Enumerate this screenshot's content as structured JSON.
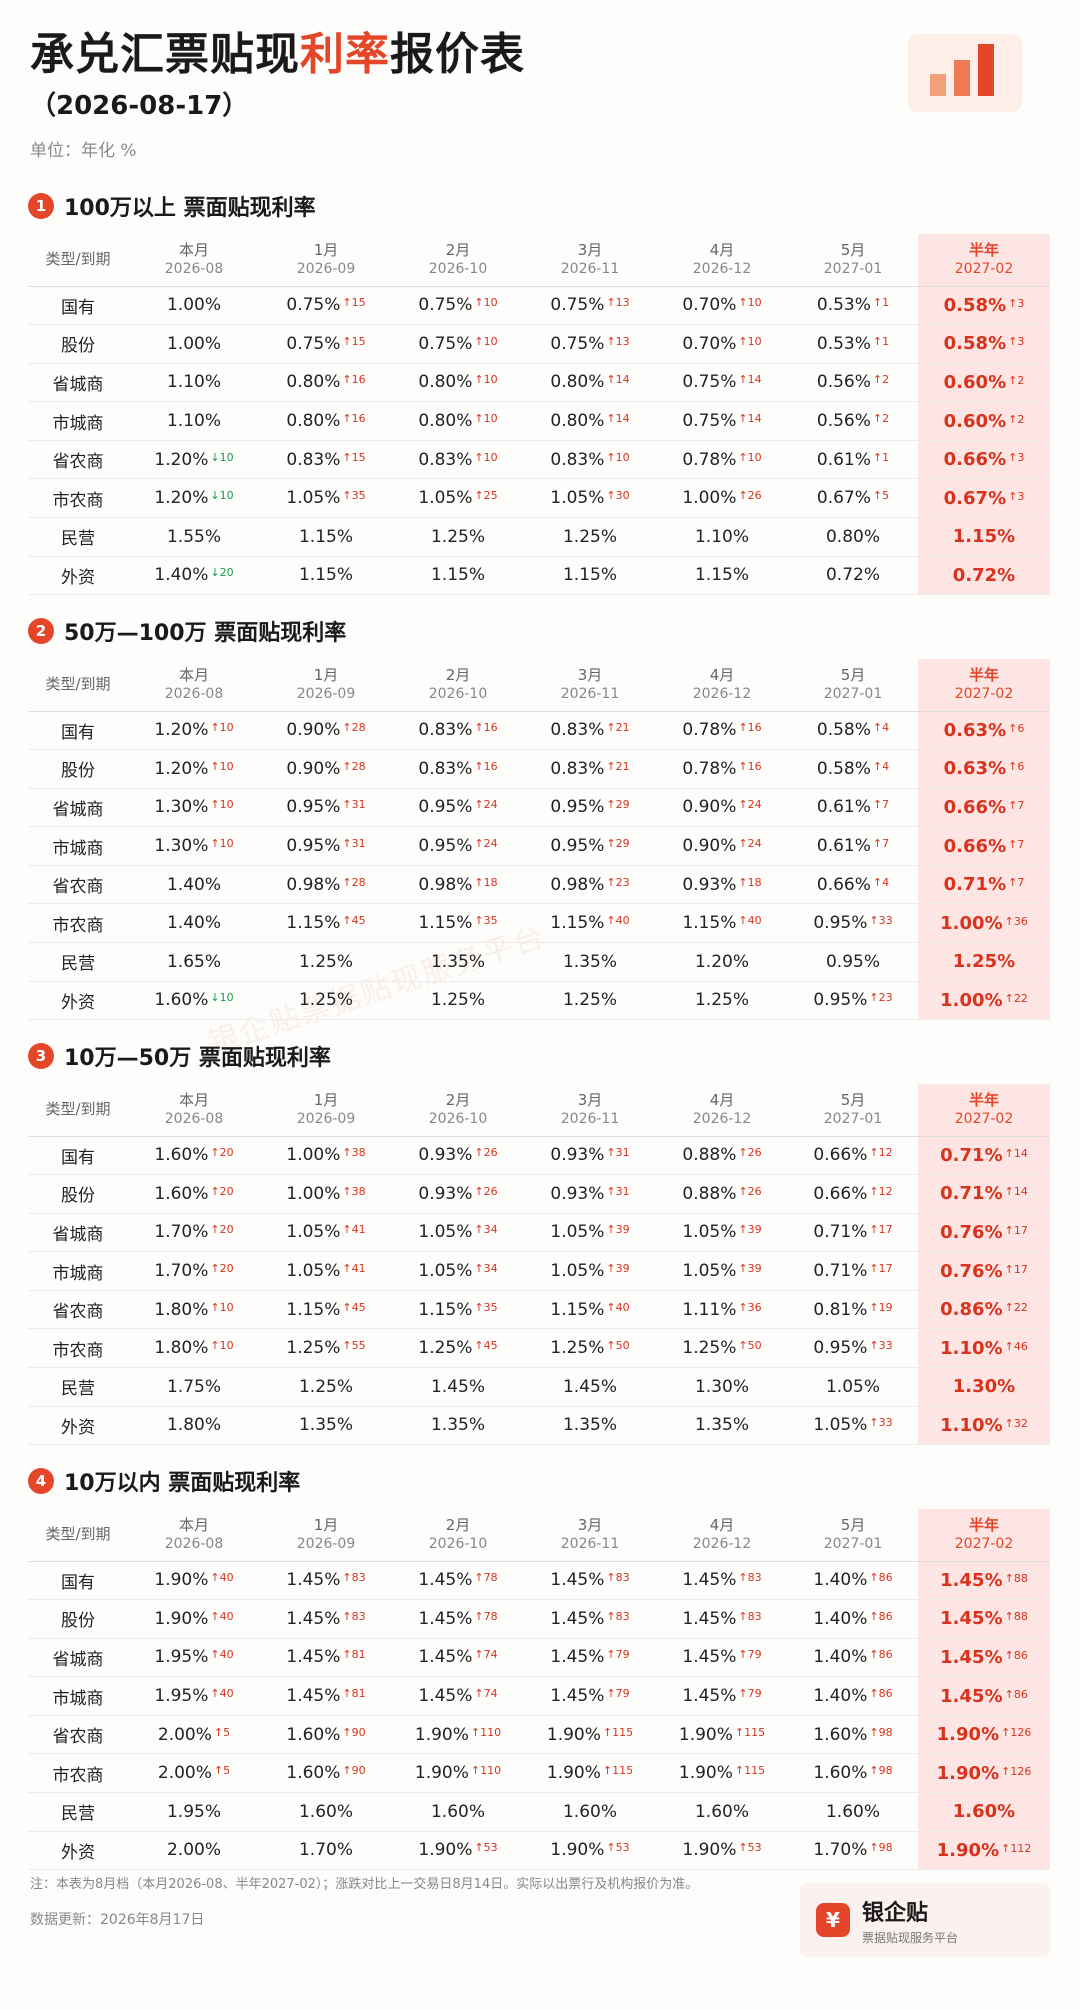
{
  "header": {
    "title_pre": "承兑汇票贴现",
    "title_hl": "利率",
    "title_post": "报价表",
    "date": "（2026-08-17）",
    "unit": "单位：年化 %"
  },
  "columns": [
    {
      "label": "本月",
      "sub": "2026-08"
    },
    {
      "label": "1月",
      "sub": "2026-09"
    },
    {
      "label": "2月",
      "sub": "2026-10"
    },
    {
      "label": "3月",
      "sub": "2026-11"
    },
    {
      "label": "4月",
      "sub": "2026-12"
    },
    {
      "label": "5月",
      "sub": "2027-01"
    },
    {
      "label": "半年",
      "sub": "2027-02"
    }
  ],
  "type_header": "类型/到期",
  "sections": [
    {
      "num": "1",
      "title": "100万以上 票面贴现利率",
      "rows": [
        {
          "type": "国有",
          "cells": [
            [
              "1.00%",
              ""
            ],
            [
              "0.75%",
              "↑15"
            ],
            [
              "0.75%",
              "↑10"
            ],
            [
              "0.75%",
              "↑13"
            ],
            [
              "0.70%",
              "↑10"
            ],
            [
              "0.53%",
              "↑1"
            ],
            [
              "0.58%",
              "↑3"
            ]
          ]
        },
        {
          "type": "股份",
          "cells": [
            [
              "1.00%",
              ""
            ],
            [
              "0.75%",
              "↑15"
            ],
            [
              "0.75%",
              "↑10"
            ],
            [
              "0.75%",
              "↑13"
            ],
            [
              "0.70%",
              "↑10"
            ],
            [
              "0.53%",
              "↑1"
            ],
            [
              "0.58%",
              "↑3"
            ]
          ]
        },
        {
          "type": "省城商",
          "cells": [
            [
              "1.10%",
              ""
            ],
            [
              "0.80%",
              "↑16"
            ],
            [
              "0.80%",
              "↑10"
            ],
            [
              "0.80%",
              "↑14"
            ],
            [
              "0.75%",
              "↑14"
            ],
            [
              "0.56%",
              "↑2"
            ],
            [
              "0.60%",
              "↑2"
            ]
          ]
        },
        {
          "type": "市城商",
          "cells": [
            [
              "1.10%",
              ""
            ],
            [
              "0.80%",
              "↑16"
            ],
            [
              "0.80%",
              "↑10"
            ],
            [
              "0.80%",
              "↑14"
            ],
            [
              "0.75%",
              "↑14"
            ],
            [
              "0.56%",
              "↑2"
            ],
            [
              "0.60%",
              "↑2"
            ]
          ]
        },
        {
          "type": "省农商",
          "cells": [
            [
              "1.20%",
              "↓10"
            ],
            [
              "0.83%",
              "↑15"
            ],
            [
              "0.83%",
              "↑10"
            ],
            [
              "0.83%",
              "↑10"
            ],
            [
              "0.78%",
              "↑10"
            ],
            [
              "0.61%",
              "↑1"
            ],
            [
              "0.66%",
              "↑3"
            ]
          ]
        },
        {
          "type": "市农商",
          "cells": [
            [
              "1.20%",
              "↓10"
            ],
            [
              "1.05%",
              "↑35"
            ],
            [
              "1.05%",
              "↑25"
            ],
            [
              "1.05%",
              "↑30"
            ],
            [
              "1.00%",
              "↑26"
            ],
            [
              "0.67%",
              "↑5"
            ],
            [
              "0.67%",
              "↑3"
            ]
          ]
        },
        {
          "type": "民营",
          "cells": [
            [
              "1.55%",
              ""
            ],
            [
              "1.15%",
              ""
            ],
            [
              "1.25%",
              ""
            ],
            [
              "1.25%",
              ""
            ],
            [
              "1.10%",
              ""
            ],
            [
              "0.80%",
              ""
            ],
            [
              "1.15%",
              ""
            ]
          ]
        },
        {
          "type": "外资",
          "cells": [
            [
              "1.40%",
              "↓20"
            ],
            [
              "1.15%",
              ""
            ],
            [
              "1.15%",
              ""
            ],
            [
              "1.15%",
              ""
            ],
            [
              "1.15%",
              ""
            ],
            [
              "0.72%",
              ""
            ],
            [
              "0.72%",
              ""
            ]
          ]
        }
      ]
    },
    {
      "num": "2",
      "title": "50万—100万 票面贴现利率",
      "rows": [
        {
          "type": "国有",
          "cells": [
            [
              "1.20%",
              "↑10"
            ],
            [
              "0.90%",
              "↑28"
            ],
            [
              "0.83%",
              "↑16"
            ],
            [
              "0.83%",
              "↑21"
            ],
            [
              "0.78%",
              "↑16"
            ],
            [
              "0.58%",
              "↑4"
            ],
            [
              "0.63%",
              "↑6"
            ]
          ]
        },
        {
          "type": "股份",
          "cells": [
            [
              "1.20%",
              "↑10"
            ],
            [
              "0.90%",
              "↑28"
            ],
            [
              "0.83%",
              "↑16"
            ],
            [
              "0.83%",
              "↑21"
            ],
            [
              "0.78%",
              "↑16"
            ],
            [
              "0.58%",
              "↑4"
            ],
            [
              "0.63%",
              "↑6"
            ]
          ]
        },
        {
          "type": "省城商",
          "cells": [
            [
              "1.30%",
              "↑10"
            ],
            [
              "0.95%",
              "↑31"
            ],
            [
              "0.95%",
              "↑24"
            ],
            [
              "0.95%",
              "↑29"
            ],
            [
              "0.90%",
              "↑24"
            ],
            [
              "0.61%",
              "↑7"
            ],
            [
              "0.66%",
              "↑7"
            ]
          ]
        },
        {
          "type": "市城商",
          "cells": [
            [
              "1.30%",
              "↑10"
            ],
            [
              "0.95%",
              "↑31"
            ],
            [
              "0.95%",
              "↑24"
            ],
            [
              "0.95%",
              "↑29"
            ],
            [
              "0.90%",
              "↑24"
            ],
            [
              "0.61%",
              "↑7"
            ],
            [
              "0.66%",
              "↑7"
            ]
          ]
        },
        {
          "type": "省农商",
          "cells": [
            [
              "1.40%",
              ""
            ],
            [
              "0.98%",
              "↑28"
            ],
            [
              "0.98%",
              "↑18"
            ],
            [
              "0.98%",
              "↑23"
            ],
            [
              "0.93%",
              "↑18"
            ],
            [
              "0.66%",
              "↑4"
            ],
            [
              "0.71%",
              "↑7"
            ]
          ]
        },
        {
          "type": "市农商",
          "cells": [
            [
              "1.40%",
              ""
            ],
            [
              "1.15%",
              "↑45"
            ],
            [
              "1.15%",
              "↑35"
            ],
            [
              "1.15%",
              "↑40"
            ],
            [
              "1.15%",
              "↑40"
            ],
            [
              "0.95%",
              "↑33"
            ],
            [
              "1.00%",
              "↑36"
            ]
          ]
        },
        {
          "type": "民营",
          "cells": [
            [
              "1.65%",
              ""
            ],
            [
              "1.25%",
              ""
            ],
            [
              "1.35%",
              ""
            ],
            [
              "1.35%",
              ""
            ],
            [
              "1.20%",
              ""
            ],
            [
              "0.95%",
              ""
            ],
            [
              "1.25%",
              ""
            ]
          ]
        },
        {
          "type": "外资",
          "cells": [
            [
              "1.60%",
              "↓10"
            ],
            [
              "1.25%",
              ""
            ],
            [
              "1.25%",
              ""
            ],
            [
              "1.25%",
              ""
            ],
            [
              "1.25%",
              ""
            ],
            [
              "0.95%",
              "↑23"
            ],
            [
              "1.00%",
              "↑22"
            ]
          ]
        }
      ]
    },
    {
      "num": "3",
      "title": "10万—50万 票面贴现利率",
      "rows": [
        {
          "type": "国有",
          "cells": [
            [
              "1.60%",
              "↑20"
            ],
            [
              "1.00%",
              "↑38"
            ],
            [
              "0.93%",
              "↑26"
            ],
            [
              "0.93%",
              "↑31"
            ],
            [
              "0.88%",
              "↑26"
            ],
            [
              "0.66%",
              "↑12"
            ],
            [
              "0.71%",
              "↑14"
            ]
          ]
        },
        {
          "type": "股份",
          "cells": [
            [
              "1.60%",
              "↑20"
            ],
            [
              "1.00%",
              "↑38"
            ],
            [
              "0.93%",
              "↑26"
            ],
            [
              "0.93%",
              "↑31"
            ],
            [
              "0.88%",
              "↑26"
            ],
            [
              "0.66%",
              "↑12"
            ],
            [
              "0.71%",
              "↑14"
            ]
          ]
        },
        {
          "type": "省城商",
          "cells": [
            [
              "1.70%",
              "↑20"
            ],
            [
              "1.05%",
              "↑41"
            ],
            [
              "1.05%",
              "↑34"
            ],
            [
              "1.05%",
              "↑39"
            ],
            [
              "1.05%",
              "↑39"
            ],
            [
              "0.71%",
              "↑17"
            ],
            [
              "0.76%",
              "↑17"
            ]
          ]
        },
        {
          "type": "市城商",
          "cells": [
            [
              "1.70%",
              "↑20"
            ],
            [
              "1.05%",
              "↑41"
            ],
            [
              "1.05%",
              "↑34"
            ],
            [
              "1.05%",
              "↑39"
            ],
            [
              "1.05%",
              "↑39"
            ],
            [
              "0.71%",
              "↑17"
            ],
            [
              "0.76%",
              "↑17"
            ]
          ]
        },
        {
          "type": "省农商",
          "cells": [
            [
              "1.80%",
              "↑10"
            ],
            [
              "1.15%",
              "↑45"
            ],
            [
              "1.15%",
              "↑35"
            ],
            [
              "1.15%",
              "↑40"
            ],
            [
              "1.11%",
              "↑36"
            ],
            [
              "0.81%",
              "↑19"
            ],
            [
              "0.86%",
              "↑22"
            ]
          ]
        },
        {
          "type": "市农商",
          "cells": [
            [
              "1.80%",
              "↑10"
            ],
            [
              "1.25%",
              "↑55"
            ],
            [
              "1.25%",
              "↑45"
            ],
            [
              "1.25%",
              "↑50"
            ],
            [
              "1.25%",
              "↑50"
            ],
            [
              "0.95%",
              "↑33"
            ],
            [
              "1.10%",
              "↑46"
            ]
          ]
        },
        {
          "type": "民营",
          "cells": [
            [
              "1.75%",
              ""
            ],
            [
              "1.25%",
              ""
            ],
            [
              "1.45%",
              ""
            ],
            [
              "1.45%",
              ""
            ],
            [
              "1.30%",
              ""
            ],
            [
              "1.05%",
              ""
            ],
            [
              "1.30%",
              ""
            ]
          ]
        },
        {
          "type": "外资",
          "cells": [
            [
              "1.80%",
              ""
            ],
            [
              "1.35%",
              ""
            ],
            [
              "1.35%",
              ""
            ],
            [
              "1.35%",
              ""
            ],
            [
              "1.35%",
              ""
            ],
            [
              "1.05%",
              "↑33"
            ],
            [
              "1.10%",
              "↑32"
            ]
          ]
        }
      ]
    },
    {
      "num": "4",
      "title": "10万以内 票面贴现利率",
      "rows": [
        {
          "type": "国有",
          "cells": [
            [
              "1.90%",
              "↑40"
            ],
            [
              "1.45%",
              "↑83"
            ],
            [
              "1.45%",
              "↑78"
            ],
            [
              "1.45%",
              "↑83"
            ],
            [
              "1.45%",
              "↑83"
            ],
            [
              "1.40%",
              "↑86"
            ],
            [
              "1.45%",
              "↑88"
            ]
          ]
        },
        {
          "type": "股份",
          "cells": [
            [
              "1.90%",
              "↑40"
            ],
            [
              "1.45%",
              "↑83"
            ],
            [
              "1.45%",
              "↑78"
            ],
            [
              "1.45%",
              "↑83"
            ],
            [
              "1.45%",
              "↑83"
            ],
            [
              "1.40%",
              "↑86"
            ],
            [
              "1.45%",
              "↑88"
            ]
          ]
        },
        {
          "type": "省城商",
          "cells": [
            [
              "1.95%",
              "↑40"
            ],
            [
              "1.45%",
              "↑81"
            ],
            [
              "1.45%",
              "↑74"
            ],
            [
              "1.45%",
              "↑79"
            ],
            [
              "1.45%",
              "↑79"
            ],
            [
              "1.40%",
              "↑86"
            ],
            [
              "1.45%",
              "↑86"
            ]
          ]
        },
        {
          "type": "市城商",
          "cells": [
            [
              "1.95%",
              "↑40"
            ],
            [
              "1.45%",
              "↑81"
            ],
            [
              "1.45%",
              "↑74"
            ],
            [
              "1.45%",
              "↑79"
            ],
            [
              "1.45%",
              "↑79"
            ],
            [
              "1.40%",
              "↑86"
            ],
            [
              "1.45%",
              "↑86"
            ]
          ]
        },
        {
          "type": "省农商",
          "cells": [
            [
              "2.00%",
              "↑5"
            ],
            [
              "1.60%",
              "↑90"
            ],
            [
              "1.90%",
              "↑110"
            ],
            [
              "1.90%",
              "↑115"
            ],
            [
              "1.90%",
              "↑115"
            ],
            [
              "1.60%",
              "↑98"
            ],
            [
              "1.90%",
              "↑126"
            ]
          ]
        },
        {
          "type": "市农商",
          "cells": [
            [
              "2.00%",
              "↑5"
            ],
            [
              "1.60%",
              "↑90"
            ],
            [
              "1.90%",
              "↑110"
            ],
            [
              "1.90%",
              "↑115"
            ],
            [
              "1.90%",
              "↑115"
            ],
            [
              "1.60%",
              "↑98"
            ],
            [
              "1.90%",
              "↑126"
            ]
          ]
        },
        {
          "type": "民营",
          "cells": [
            [
              "1.95%",
              ""
            ],
            [
              "1.60%",
              ""
            ],
            [
              "1.60%",
              ""
            ],
            [
              "1.60%",
              ""
            ],
            [
              "1.60%",
              ""
            ],
            [
              "1.60%",
              ""
            ],
            [
              "1.60%",
              ""
            ]
          ]
        },
        {
          "type": "外资",
          "cells": [
            [
              "2.00%",
              ""
            ],
            [
              "1.70%",
              ""
            ],
            [
              "1.90%",
              "↑53"
            ],
            [
              "1.90%",
              "↑53"
            ],
            [
              "1.90%",
              "↑53"
            ],
            [
              "1.70%",
              "↑98"
            ],
            [
              "1.90%",
              "↑112"
            ]
          ]
        }
      ]
    }
  ],
  "watermark": "银企贴票据贴现服务平台",
  "footer": {
    "note": "注：本表为8月档（本月2026-08、半年2027-02）；涨跌对比上一交易日8月14日。实际以出票行及机构报价为准。",
    "update": "数据更新：2026年8月17日"
  },
  "brand": {
    "icon": "¥",
    "icon_name": "yen-icon",
    "name": "银企贴",
    "sub": "票据贴现服务平台"
  },
  "colors": {
    "accent": "#e5462a",
    "up": "#d9321d",
    "down": "#1a9a4a",
    "highlight_bg": "#fce5e2"
  }
}
